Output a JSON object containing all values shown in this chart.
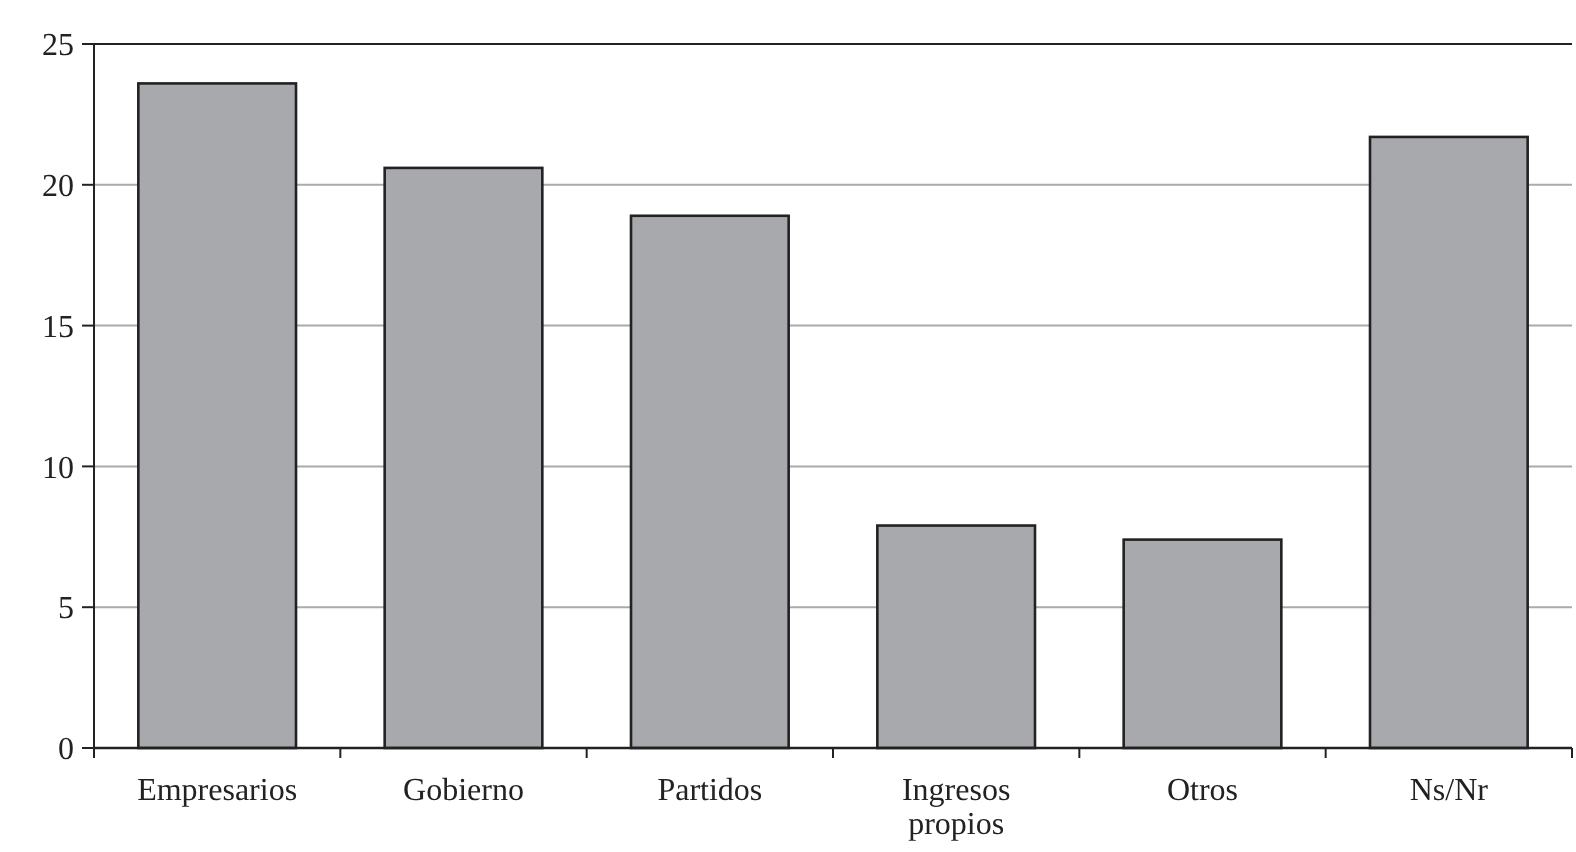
{
  "chart_data": {
    "type": "bar",
    "categories": [
      "Empresarios",
      "Gobierno",
      "Partidos",
      "Ingresos propios",
      "Otros",
      "Ns/Nr"
    ],
    "values": [
      23.6,
      20.6,
      18.9,
      7.9,
      7.4,
      21.7
    ],
    "color": "#a8a9ad",
    "ylim": [
      0,
      25
    ],
    "yticks": [
      0,
      5,
      10,
      15,
      20,
      25
    ],
    "grid": "y"
  }
}
